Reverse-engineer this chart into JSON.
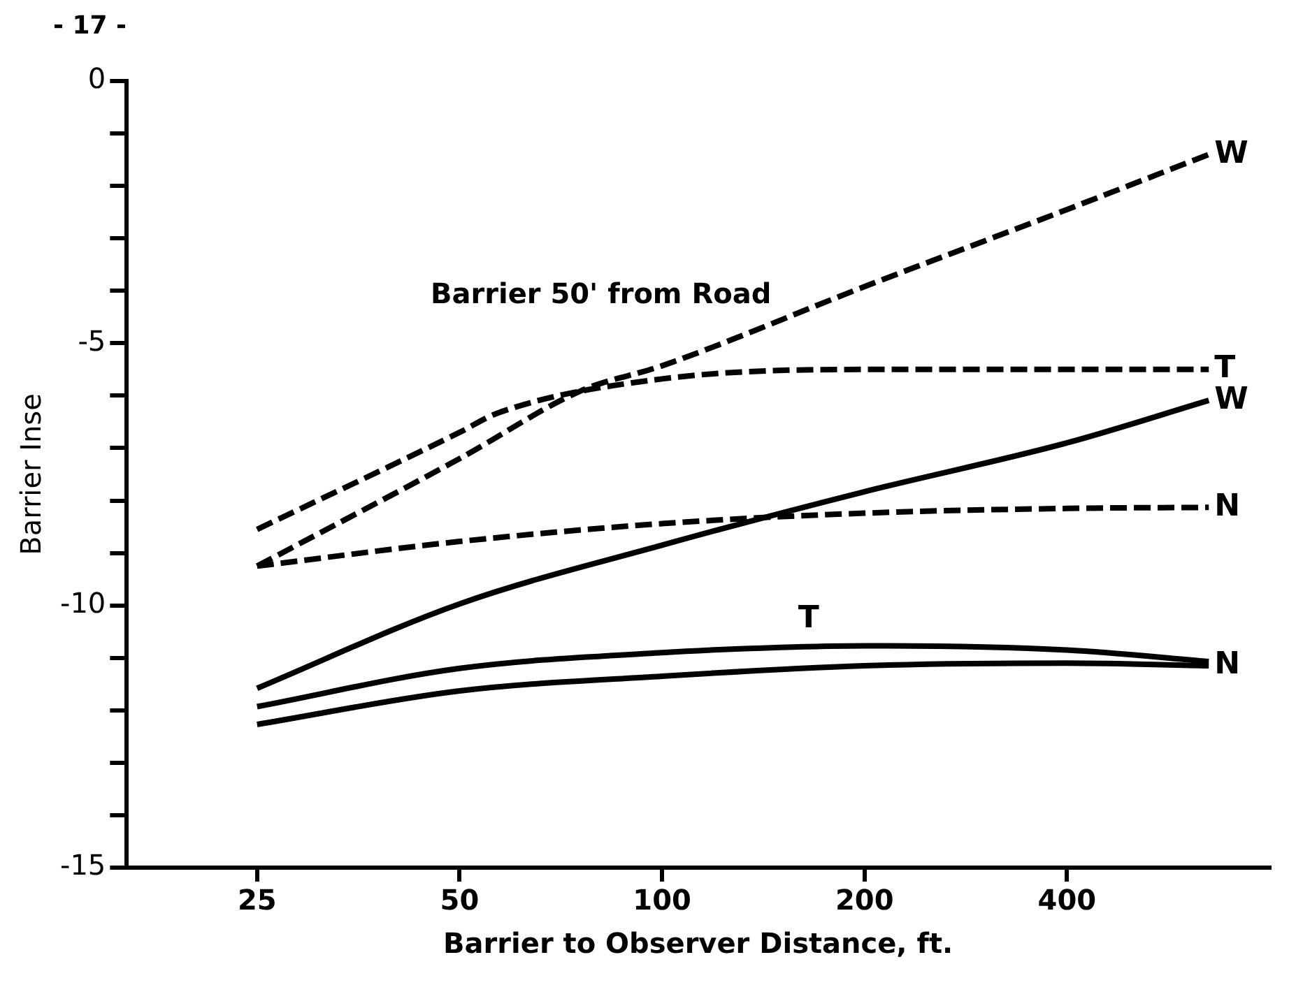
{
  "chart_data": {
    "type": "line",
    "xlabel": "Barrier to Observer Distance, ft.",
    "ylabel": "Barrier Inse",
    "annotations": [
      "Barrier 50' from Road",
      "- 17 -"
    ],
    "log": "x",
    "grid": false,
    "legend": false,
    "marker": "none",
    "xlim": [
      16,
      800
    ],
    "xticks": [
      25,
      50,
      100,
      200,
      400
    ],
    "ylim": [
      -15,
      0
    ],
    "yticks": [
      -15,
      {
        "value": -14,
        "label": null
      },
      {
        "value": -13,
        "label": null
      },
      {
        "value": -12,
        "label": null
      },
      {
        "value": -11,
        "label": null
      },
      -10,
      {
        "value": -9,
        "label": null
      },
      {
        "value": -8,
        "label": null
      },
      {
        "value": -7,
        "label": null
      },
      {
        "value": -6,
        "label": null
      },
      -5,
      {
        "value": -4,
        "label": null
      },
      {
        "value": -3,
        "label": null
      },
      {
        "value": -2,
        "label": null
      },
      {
        "value": -1,
        "label": null
      },
      0
    ],
    "series": [
      {
        "name": "W",
        "color": "#000000",
        "line_style": "dashed",
        "x": [
          25,
          50,
          76,
          100,
          200,
          400,
          650
        ],
        "values": [
          -9.25,
          -7.2,
          -5.9,
          -5.43,
          -3.92,
          -2.45,
          -1.4
        ]
      },
      {
        "name": "T",
        "color": "#000000",
        "line_style": "dashed",
        "x": [
          25,
          50,
          57,
          100,
          200,
          400,
          650
        ],
        "values": [
          -8.55,
          -6.7,
          -6.33,
          -5.68,
          -5.5,
          -5.5,
          -5.5
        ]
      },
      {
        "name": "N",
        "color": "#000000",
        "line_style": "dashed",
        "x": [
          25,
          50,
          100,
          200,
          400,
          650
        ],
        "values": [
          -9.25,
          -8.78,
          -8.44,
          -8.24,
          -8.15,
          -8.13
        ]
      },
      {
        "name": "W",
        "color": "#000000",
        "line_style": "solid",
        "x": [
          25,
          50,
          100,
          200,
          400,
          650
        ],
        "values": [
          -11.58,
          -9.97,
          -8.85,
          -7.83,
          -6.9,
          -6.09
        ]
      },
      {
        "name": "T",
        "color": "#000000",
        "line_style": "solid",
        "x": [
          25,
          50,
          100,
          150,
          200,
          400,
          650
        ],
        "values": [
          -11.93,
          -11.2,
          -10.9,
          -10.8,
          -10.77,
          -10.85,
          -11.07
        ]
      },
      {
        "name": "N",
        "color": "#000000",
        "line_style": "solid",
        "x": [
          25,
          50,
          100,
          200,
          400,
          650
        ],
        "values": [
          -12.27,
          -11.63,
          -11.35,
          -11.15,
          -11.1,
          -11.15
        ]
      }
    ]
  }
}
